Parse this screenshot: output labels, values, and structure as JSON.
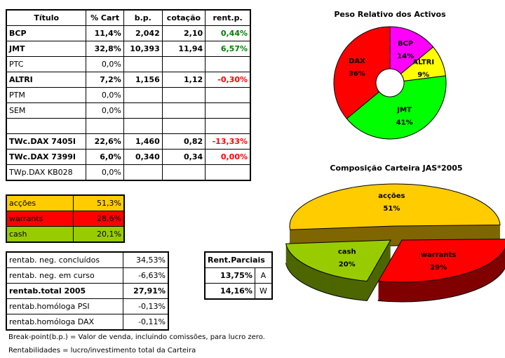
{
  "main_table": {
    "headers": [
      "Título",
      "% Cart",
      "b.p.",
      "cotação",
      "rent.p."
    ],
    "rows": [
      {
        "titulo": "BCP",
        "cart": "11,4%",
        "bp": "2,042",
        "cot": "2,10",
        "rent": "0,44%",
        "bold": true,
        "rent_color": "green"
      },
      {
        "titulo": "JMT",
        "cart": "32,8%",
        "bp": "10,393",
        "cot": "11,94",
        "rent": "6,57%",
        "bold": true,
        "rent_color": "green"
      },
      {
        "titulo": "PTC",
        "cart": "0,0%",
        "bp": "",
        "cot": "",
        "rent": "",
        "bold": false
      },
      {
        "titulo": "ALTRI",
        "cart": "7,2%",
        "bp": "1,156",
        "cot": "1,12",
        "rent": "-0,30%",
        "bold": true,
        "rent_color": "red"
      },
      {
        "titulo": "PTM",
        "cart": "0,0%",
        "bp": "",
        "cot": "",
        "rent": "",
        "bold": false
      },
      {
        "titulo": "SEM",
        "cart": "0,0%",
        "bp": "",
        "cot": "",
        "rent": "",
        "bold": false
      },
      {
        "titulo": "",
        "cart": "",
        "bp": "",
        "cot": "",
        "rent": "",
        "bold": false
      },
      {
        "titulo": "TWc.DAX 7405I",
        "cart": "22,6%",
        "bp": "1,460",
        "cot": "0,82",
        "rent": "-13,33%",
        "bold": true,
        "rent_color": "red"
      },
      {
        "titulo": "TWc.DAX 7399I",
        "cart": "6,0%",
        "bp": "0,340",
        "cot": "0,34",
        "rent": "0,00%",
        "bold": true,
        "rent_color": "red"
      },
      {
        "titulo": "TWp.DAX KB028",
        "cart": "0,0%",
        "bp": "",
        "cot": "",
        "rent": "",
        "bold": false
      }
    ]
  },
  "composition": [
    {
      "label": "acções",
      "value": "51,3%",
      "color": "#ffcc00"
    },
    {
      "label": "warrants",
      "value": "28,6%",
      "color": "#ff0000"
    },
    {
      "label": "cash",
      "value": "20,1%",
      "color": "#99cc00"
    }
  ],
  "rentab": [
    {
      "label": "rentab. neg. concluídos",
      "value": "34,53%",
      "bold": false
    },
    {
      "label": "rentab. neg. em curso",
      "value": "-6,63%",
      "bold": false
    },
    {
      "label": "rentab.total 2005",
      "value": "27,91%",
      "bold": true
    },
    {
      "label": "rentab.homóloga PSI",
      "value": "-0,13%",
      "bold": false
    },
    {
      "label": "rentab.homóloga DAX",
      "value": "-0,11%",
      "bold": false
    }
  ],
  "parciais": {
    "header": "Rent.Parciais",
    "rows": [
      {
        "value": "13,75%",
        "tag": "A"
      },
      {
        "value": "14,16%",
        "tag": "W"
      }
    ]
  },
  "notes": [
    "Break-point(b.p.) = Valor de venda, incluindo comissões, para lucro zero.",
    "Rentabilidades = lucro/investimento total da Carteira"
  ],
  "chart_data": [
    {
      "type": "pie",
      "subtype": "doughnut",
      "title": "Peso Relativo dos Activos",
      "categories": [
        "BCP",
        "ALTRI",
        "JMT",
        "DAX"
      ],
      "values": [
        14,
        9,
        41,
        36
      ],
      "labels": [
        "14%",
        "9%",
        "41%",
        "36%"
      ],
      "colors": [
        "#ff00ff",
        "#ffff00",
        "#00ff00",
        "#ff0000"
      ]
    },
    {
      "type": "pie",
      "subtype": "3d-exploded",
      "title": "Composição Carteira JAS*2005",
      "categories": [
        "acções",
        "warrants",
        "cash"
      ],
      "values": [
        51,
        29,
        20
      ],
      "labels": [
        "51%",
        "29%",
        "20%"
      ],
      "colors": [
        "#ffcc00",
        "#ff0000",
        "#99cc00"
      ],
      "side_colors": [
        "#806600",
        "#800000",
        "#4d6600"
      ]
    }
  ]
}
